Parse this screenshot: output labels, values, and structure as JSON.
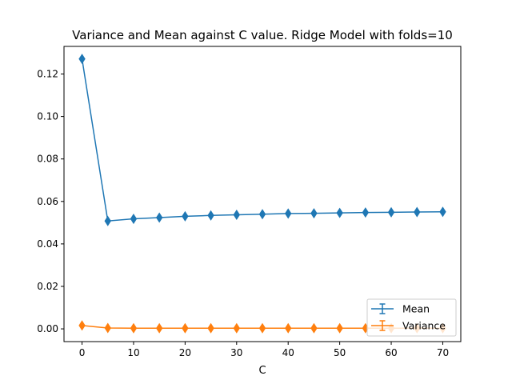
{
  "chart_data": {
    "type": "line",
    "title": "Variance and Mean against C value. Ridge Model with folds=10",
    "xlabel": "C",
    "ylabel": "",
    "xlim": [
      -3.5,
      73.5
    ],
    "ylim": [
      -0.006,
      0.133
    ],
    "x_ticks": [
      0,
      10,
      20,
      30,
      40,
      50,
      60,
      70
    ],
    "y_ticks": [
      0.0,
      0.02,
      0.04,
      0.06,
      0.08,
      0.1,
      0.12
    ],
    "y_tick_labels": [
      "0.00",
      "0.02",
      "0.04",
      "0.06",
      "0.08",
      "0.10",
      "0.12"
    ],
    "x": [
      0,
      5,
      10,
      15,
      20,
      25,
      30,
      35,
      40,
      45,
      50,
      55,
      60,
      65,
      70
    ],
    "series": [
      {
        "name": "Mean",
        "color": "#1f77b4",
        "marker": "thin-diamond",
        "errorbar": true,
        "values": [
          0.1271,
          0.0508,
          0.0518,
          0.0524,
          0.053,
          0.0534,
          0.0537,
          0.054,
          0.0543,
          0.0544,
          0.0546,
          0.0548,
          0.0549,
          0.055,
          0.0551
        ]
      },
      {
        "name": "Variance",
        "color": "#ff7f0e",
        "marker": "thin-diamond",
        "errorbar": true,
        "values": [
          0.0016,
          0.0004,
          0.0003,
          0.0003,
          0.0003,
          0.0003,
          0.0003,
          0.0003,
          0.0003,
          0.0003,
          0.0003,
          0.0003,
          0.0003,
          0.0003,
          0.0003
        ]
      }
    ],
    "legend_position": "lower-right",
    "grid": false
  }
}
